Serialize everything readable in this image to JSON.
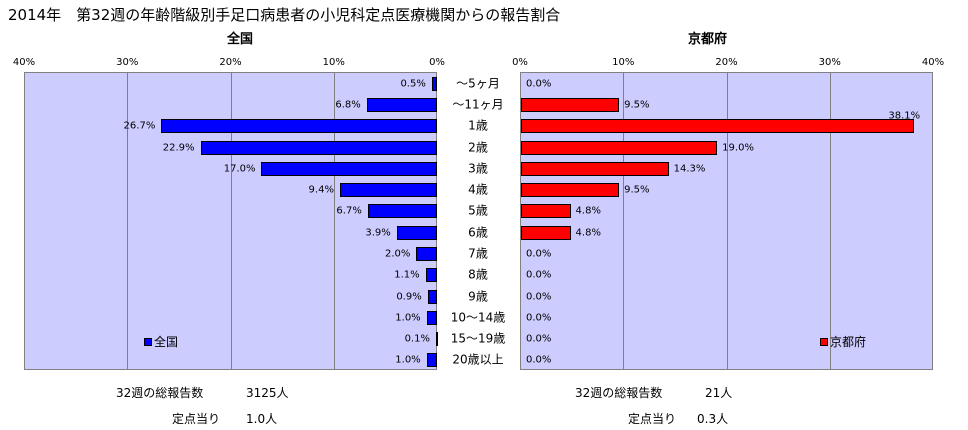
{
  "title": "2014年　第32週の年齢階級別手足口病患者の小児科定点医療機関からの報告割合",
  "categories": [
    "～5ヶ月",
    "～11ヶ月",
    "1歳",
    "2歳",
    "3歳",
    "4歳",
    "5歳",
    "6歳",
    "7歳",
    "8歳",
    "9歳",
    "10～14歳",
    "15～19歳",
    "20歳以上"
  ],
  "colors": {
    "national": "#0000ff",
    "prefecture": "#ff0000",
    "plot_bg": "#ccccff"
  },
  "chart_data": [
    {
      "type": "bar",
      "orientation": "horizontal",
      "direction": "right-to-left",
      "title": "全国",
      "categories": [
        "～5ヶ月",
        "～11ヶ月",
        "1歳",
        "2歳",
        "3歳",
        "4歳",
        "5歳",
        "6歳",
        "7歳",
        "8歳",
        "9歳",
        "10～14歳",
        "15～19歳",
        "20歳以上"
      ],
      "series": [
        {
          "name": "全国",
          "values": [
            0.5,
            6.8,
            26.7,
            22.9,
            17.0,
            9.4,
            6.7,
            3.9,
            2.0,
            1.1,
            0.9,
            1.0,
            0.1,
            1.0
          ]
        }
      ],
      "value_labels": [
        "0.5%",
        "6.8%",
        "26.7%",
        "22.9%",
        "17.0%",
        "9.4%",
        "6.7%",
        "3.9%",
        "2.0%",
        "1.1%",
        "0.9%",
        "1.0%",
        "0.1%",
        "1.0%"
      ],
      "xlim": [
        0,
        40
      ],
      "ticks": [
        "40%",
        "30%",
        "20%",
        "10%",
        "0%"
      ],
      "legend": "bottom-left",
      "grid": true
    },
    {
      "type": "bar",
      "orientation": "horizontal",
      "direction": "left-to-right",
      "title": "京都府",
      "categories": [
        "～5ヶ月",
        "～11ヶ月",
        "1歳",
        "2歳",
        "3歳",
        "4歳",
        "5歳",
        "6歳",
        "7歳",
        "8歳",
        "9歳",
        "10～14歳",
        "15～19歳",
        "20歳以上"
      ],
      "series": [
        {
          "name": "京都府",
          "values": [
            0.0,
            9.5,
            38.1,
            19.0,
            14.3,
            9.5,
            4.8,
            4.8,
            0.0,
            0.0,
            0.0,
            0.0,
            0.0,
            0.0
          ]
        }
      ],
      "value_labels": [
        "0.0%",
        "9.5%",
        "38.1%",
        "19.0%",
        "14.3%",
        "9.5%",
        "4.8%",
        "4.8%",
        "0.0%",
        "0.0%",
        "0.0%",
        "0.0%",
        "0.0%",
        "0.0%"
      ],
      "xlim": [
        0,
        40
      ],
      "ticks": [
        "0%",
        "10%",
        "20%",
        "30%",
        "40%"
      ],
      "legend": "bottom-right",
      "grid": true
    }
  ],
  "footer": {
    "national_total_label": "32週の総報告数",
    "national_total_value": "3125人",
    "national_per_label": "定点当り",
    "national_per_value": "1.0人",
    "pref_total_label": "32週の総報告数",
    "pref_total_value": "21人",
    "pref_per_label": "定点当り",
    "pref_per_value": "0.3人"
  }
}
